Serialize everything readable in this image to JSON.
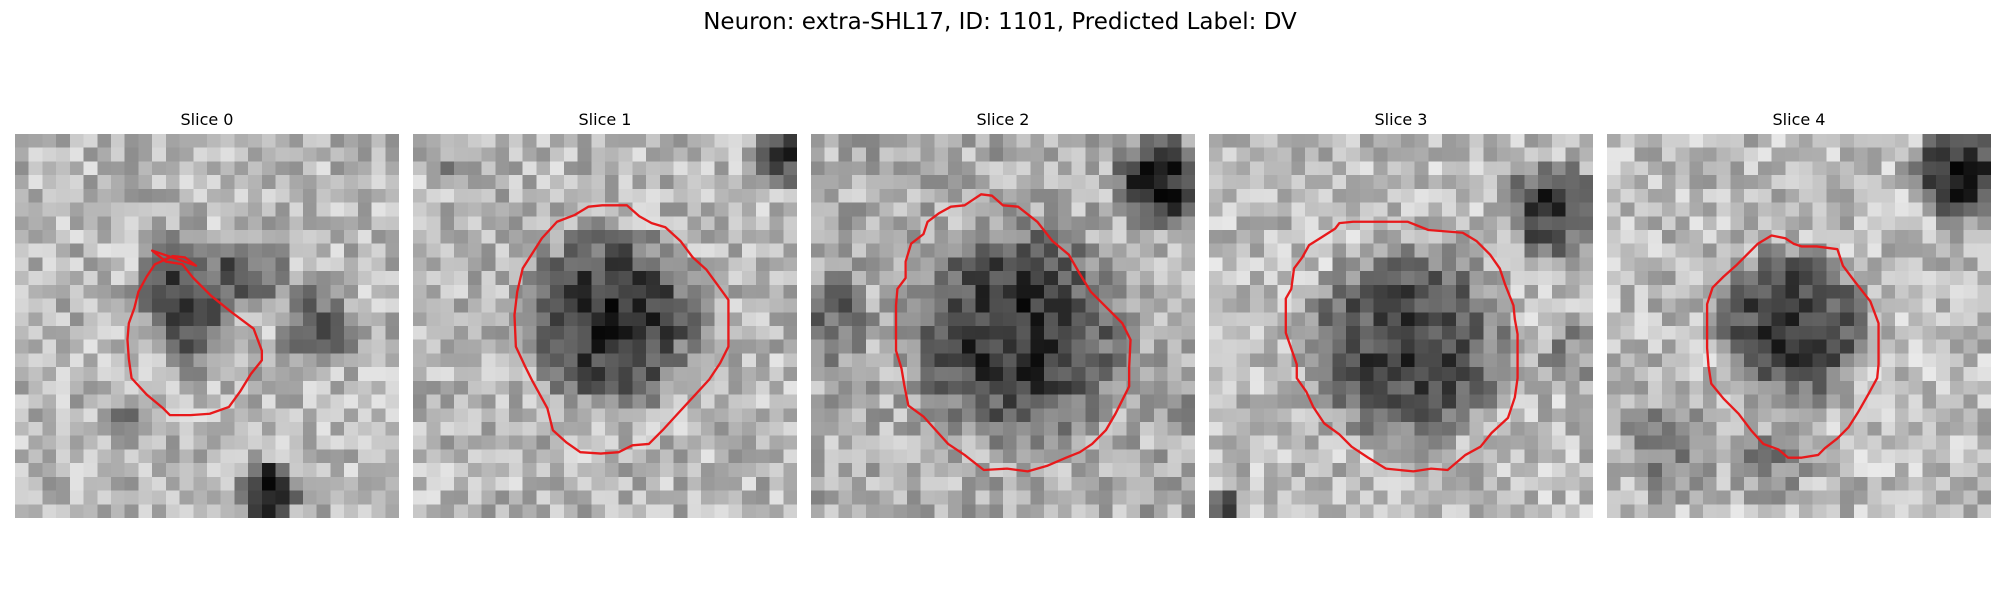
{
  "figure": {
    "title": "Neuron: extra-SHL17, ID: 1101, Predicted Label: DV"
  },
  "contour_color": "#e8191b",
  "colormap": "grayscale",
  "grid_size": 28,
  "panels": [
    {
      "title": "Slice 0",
      "contour": [
        [
          10.0,
          8.5
        ],
        [
          11.0,
          9.3
        ],
        [
          12.2,
          9.5
        ],
        [
          13.0,
          10.5
        ],
        [
          14.3,
          11.8
        ],
        [
          15.8,
          13.0
        ],
        [
          17.4,
          14.2
        ],
        [
          18.0,
          15.8
        ],
        [
          18.0,
          16.5
        ],
        [
          17.2,
          17.5
        ],
        [
          16.4,
          18.8
        ],
        [
          15.6,
          19.9
        ],
        [
          14.2,
          20.4
        ],
        [
          12.8,
          20.5
        ],
        [
          11.3,
          20.5
        ],
        [
          10.8,
          20.0
        ],
        [
          9.6,
          19.0
        ],
        [
          8.5,
          17.8
        ],
        [
          8.3,
          16.4
        ],
        [
          8.2,
          15.0
        ],
        [
          8.3,
          13.8
        ],
        [
          8.7,
          12.7
        ],
        [
          9.0,
          11.5
        ],
        [
          9.6,
          10.4
        ],
        [
          10.2,
          9.5
        ],
        [
          11.5,
          8.9
        ],
        [
          12.4,
          9.0
        ],
        [
          13.2,
          9.6
        ]
      ],
      "bg_params": {
        "seed": 11,
        "base": 0.72,
        "dark_spots": [
          [
            12.5,
            11.5,
            4.5,
            0.45
          ],
          [
            17.5,
            10.0,
            3.0,
            0.35
          ],
          [
            18.5,
            26.0,
            2.5,
            0.7
          ],
          [
            8.0,
            20.5,
            1.5,
            0.35
          ],
          [
            22.0,
            14.0,
            3.5,
            0.3
          ],
          [
            13.0,
            15.0,
            3.0,
            0.2
          ]
        ]
      }
    },
    {
      "title": "Slice 1",
      "contour": [
        [
          13.8,
          5.2
        ],
        [
          14.8,
          5.2
        ],
        [
          15.6,
          5.2
        ],
        [
          16.5,
          6.0
        ],
        [
          17.4,
          6.5
        ],
        [
          18.4,
          6.8
        ],
        [
          19.5,
          7.8
        ],
        [
          20.4,
          9.0
        ],
        [
          21.4,
          9.9
        ],
        [
          22.2,
          11.0
        ],
        [
          23.0,
          12.1
        ],
        [
          23.0,
          13.8
        ],
        [
          23.0,
          15.5
        ],
        [
          22.4,
          16.7
        ],
        [
          21.6,
          17.9
        ],
        [
          20.5,
          19.1
        ],
        [
          19.3,
          20.4
        ],
        [
          18.2,
          21.6
        ],
        [
          17.2,
          22.6
        ],
        [
          16.0,
          22.7
        ],
        [
          15.0,
          23.2
        ],
        [
          13.7,
          23.3
        ],
        [
          12.2,
          23.2
        ],
        [
          11.2,
          22.5
        ],
        [
          10.2,
          21.6
        ],
        [
          9.8,
          20.0
        ],
        [
          8.7,
          18.0
        ],
        [
          8.2,
          17.0
        ],
        [
          7.5,
          15.5
        ],
        [
          7.4,
          13.2
        ],
        [
          7.6,
          11.5
        ],
        [
          8.0,
          9.8
        ],
        [
          8.7,
          8.7
        ],
        [
          9.4,
          7.6
        ],
        [
          10.5,
          6.4
        ],
        [
          11.8,
          5.9
        ],
        [
          12.8,
          5.3
        ]
      ],
      "bg_params": {
        "seed": 23,
        "base": 0.72,
        "dark_spots": [
          [
            14.5,
            13.5,
            7.5,
            0.55
          ],
          [
            27.0,
            1.5,
            2.5,
            0.5
          ],
          [
            2.5,
            2.5,
            1.5,
            0.15
          ]
        ]
      }
    },
    {
      "title": "Slice 2",
      "contour": [
        [
          12.4,
          4.4
        ],
        [
          13.2,
          4.5
        ],
        [
          14.0,
          5.2
        ],
        [
          15.1,
          5.3
        ],
        [
          16.5,
          6.4
        ],
        [
          17.6,
          7.8
        ],
        [
          18.8,
          8.8
        ],
        [
          19.6,
          10.2
        ],
        [
          20.4,
          11.5
        ],
        [
          21.5,
          12.6
        ],
        [
          22.7,
          13.8
        ],
        [
          23.3,
          15.0
        ],
        [
          23.2,
          17.0
        ],
        [
          23.2,
          18.4
        ],
        [
          22.7,
          19.4
        ],
        [
          22.2,
          20.4
        ],
        [
          21.5,
          21.6
        ],
        [
          20.5,
          22.6
        ],
        [
          19.6,
          23.2
        ],
        [
          18.6,
          23.6
        ],
        [
          17.2,
          24.2
        ],
        [
          15.8,
          24.6
        ],
        [
          14.3,
          24.4
        ],
        [
          12.6,
          24.5
        ],
        [
          11.2,
          23.4
        ],
        [
          10.0,
          22.6
        ],
        [
          9.1,
          21.6
        ],
        [
          8.2,
          20.6
        ],
        [
          7.1,
          19.8
        ],
        [
          6.8,
          18.3
        ],
        [
          6.6,
          17.1
        ],
        [
          6.2,
          15.8
        ],
        [
          6.2,
          14.0
        ],
        [
          6.2,
          12.5
        ],
        [
          6.3,
          11.3
        ],
        [
          6.9,
          10.5
        ],
        [
          6.9,
          9.3
        ],
        [
          7.3,
          8.0
        ],
        [
          8.2,
          7.3
        ],
        [
          8.5,
          6.4
        ],
        [
          9.3,
          5.8
        ],
        [
          10.2,
          5.3
        ],
        [
          11.2,
          5.2
        ],
        [
          11.8,
          4.8
        ]
      ],
      "bg_params": {
        "seed": 37,
        "base": 0.68,
        "dark_spots": [
          [
            15.0,
            14.5,
            9.0,
            0.5
          ],
          [
            25.5,
            3.5,
            4.0,
            0.55
          ],
          [
            1.5,
            13.5,
            3.5,
            0.3
          ],
          [
            27.5,
            20.5,
            2.0,
            0.25
          ]
        ]
      }
    },
    {
      "title": "Slice 3",
      "contour": [
        [
          9.5,
          6.5
        ],
        [
          10.5,
          6.4
        ],
        [
          12.5,
          6.4
        ],
        [
          14.5,
          6.4
        ],
        [
          16.0,
          7.0
        ],
        [
          18.5,
          7.2
        ],
        [
          19.5,
          7.8
        ],
        [
          20.5,
          8.8
        ],
        [
          21.2,
          9.8
        ],
        [
          21.6,
          11.0
        ],
        [
          22.2,
          12.5
        ],
        [
          22.3,
          13.5
        ],
        [
          22.5,
          14.6
        ],
        [
          22.5,
          15.8
        ],
        [
          22.5,
          17.8
        ],
        [
          22.3,
          19.2
        ],
        [
          21.8,
          20.7
        ],
        [
          20.6,
          21.8
        ],
        [
          19.8,
          22.8
        ],
        [
          18.7,
          23.4
        ],
        [
          17.4,
          24.5
        ],
        [
          16.2,
          24.4
        ],
        [
          14.9,
          24.6
        ],
        [
          12.9,
          24.4
        ],
        [
          11.6,
          23.6
        ],
        [
          10.4,
          22.8
        ],
        [
          9.5,
          21.9
        ],
        [
          8.4,
          21.1
        ],
        [
          7.6,
          19.9
        ],
        [
          7.1,
          18.8
        ],
        [
          6.4,
          17.8
        ],
        [
          6.4,
          16.8
        ],
        [
          5.6,
          14.5
        ],
        [
          5.6,
          13.7
        ],
        [
          5.6,
          12.0
        ],
        [
          6.0,
          11.3
        ],
        [
          6.2,
          9.8
        ],
        [
          6.8,
          9.0
        ],
        [
          7.3,
          8.1
        ],
        [
          8.1,
          7.6
        ],
        [
          9.2,
          6.9
        ]
      ],
      "bg_params": {
        "seed": 53,
        "base": 0.74,
        "dark_spots": [
          [
            14.5,
            15.5,
            8.5,
            0.5
          ],
          [
            25.0,
            5.5,
            4.0,
            0.55
          ],
          [
            1.0,
            27.0,
            1.0,
            0.8
          ],
          [
            26.5,
            16.0,
            3.0,
            0.2
          ]
        ]
      }
    },
    {
      "title": "Slice 4",
      "contour": [
        [
          12.0,
          7.4
        ],
        [
          13.0,
          7.6
        ],
        [
          13.6,
          8.0
        ],
        [
          14.2,
          8.2
        ],
        [
          15.3,
          8.2
        ],
        [
          16.8,
          8.4
        ],
        [
          17.2,
          9.6
        ],
        [
          18.1,
          10.8
        ],
        [
          19.2,
          12.2
        ],
        [
          19.8,
          13.8
        ],
        [
          19.8,
          15.6
        ],
        [
          19.8,
          16.8
        ],
        [
          19.7,
          17.8
        ],
        [
          19.1,
          18.9
        ],
        [
          18.3,
          20.3
        ],
        [
          17.6,
          21.4
        ],
        [
          16.8,
          22.2
        ],
        [
          15.9,
          22.9
        ],
        [
          15.4,
          23.4
        ],
        [
          14.2,
          23.6
        ],
        [
          13.2,
          23.6
        ],
        [
          12.5,
          23.0
        ],
        [
          11.4,
          22.6
        ],
        [
          10.5,
          21.6
        ],
        [
          9.6,
          20.4
        ],
        [
          8.5,
          19.3
        ],
        [
          7.6,
          18.2
        ],
        [
          7.4,
          16.9
        ],
        [
          7.3,
          15.6
        ],
        [
          7.3,
          14.0
        ],
        [
          7.3,
          12.4
        ],
        [
          7.7,
          11.2
        ],
        [
          8.5,
          10.4
        ],
        [
          9.4,
          9.6
        ],
        [
          10.2,
          8.8
        ],
        [
          11.0,
          8.0
        ]
      ],
      "bg_params": {
        "seed": 71,
        "base": 0.74,
        "dark_spots": [
          [
            13.5,
            14.0,
            6.5,
            0.55
          ],
          [
            25.5,
            3.0,
            4.0,
            0.65
          ],
          [
            5.0,
            23.0,
            4.5,
            0.25
          ],
          [
            12.0,
            24.0,
            3.5,
            0.2
          ]
        ]
      }
    }
  ]
}
